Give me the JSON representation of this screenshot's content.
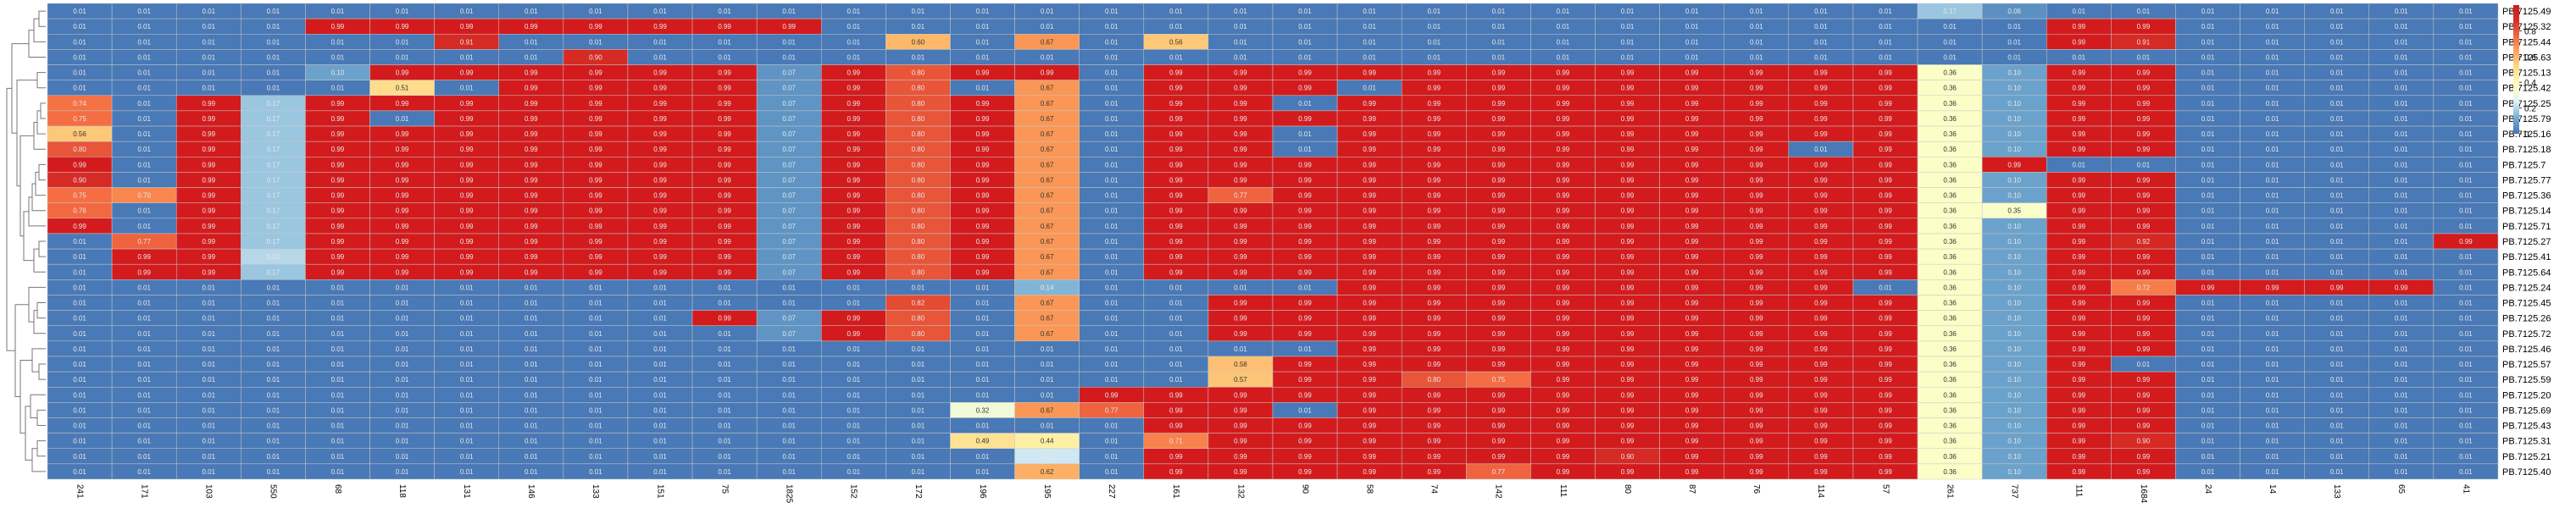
{
  "chart_data": {
    "type": "heatmap",
    "title": "",
    "xlabel": "",
    "ylabel": "",
    "columns": [
      "241",
      "171",
      "103",
      "550",
      "68",
      "118",
      "131",
      "146",
      "133",
      "151",
      "75",
      "1825",
      "152",
      "172",
      "196",
      "195",
      "227",
      "161",
      "132",
      "90",
      "58",
      "74",
      "142",
      "111",
      "80",
      "87",
      "76",
      "114",
      "57",
      "261",
      "737",
      "111",
      "1684",
      "24",
      "14",
      "133",
      "65",
      "41"
    ],
    "rows": [
      "PB.7125.49",
      "PB.7125.32",
      "PB.7125.44",
      "PB.7125.63",
      "PB.7125.13",
      "PB.7125.42",
      "PB.7125.25",
      "PB.7125.79",
      "PB.7125.16",
      "PB.7125.18",
      "PB.7125.7",
      "PB.7125.77",
      "PB.7125.36",
      "PB.7125.14",
      "PB.7125.71",
      "PB.7125.27",
      "PB.7125.41",
      "PB.7125.64",
      "PB.7125.24",
      "PB.7125.45",
      "PB.7125.26",
      "PB.7125.72",
      "PB.7125.46",
      "PB.7125.57",
      "PB.7125.59",
      "PB.7125.20",
      "PB.7125.69",
      "PB.7125.43",
      "PB.7125.31",
      "PB.7125.21",
      "PB.7125.40"
    ],
    "values": [
      [
        0.01,
        0.01,
        0.01,
        0.01,
        0.01,
        0.01,
        0.01,
        0.01,
        0.01,
        0.01,
        0.01,
        0.01,
        0.01,
        0.01,
        0.01,
        0.01,
        0.01,
        0.01,
        0.01,
        0.01,
        0.01,
        0.01,
        0.01,
        0.01,
        0.01,
        0.01,
        0.01,
        0.01,
        0.01,
        0.17,
        0.06,
        0.01,
        0.01,
        0.01,
        0.01,
        0.01,
        0.01,
        0.01
      ],
      [
        0.01,
        0.01,
        0.01,
        0.01,
        0.99,
        0.99,
        0.99,
        0.99,
        0.99,
        0.99,
        0.99,
        0.99,
        0.01,
        0.01,
        0.01,
        0.01,
        0.01,
        0.01,
        0.01,
        0.01,
        0.01,
        0.01,
        0.01,
        0.01,
        0.01,
        0.01,
        0.01,
        0.01,
        0.01,
        0.01,
        0.01,
        0.99,
        0.99,
        0.01,
        0.01,
        0.01,
        0.01,
        0.01
      ],
      [
        0.01,
        0.01,
        0.01,
        0.01,
        0.01,
        0.01,
        0.91,
        0.01,
        0.01,
        0.01,
        0.01,
        0.01,
        0.01,
        0.6,
        0.01,
        0.67,
        0.01,
        0.56,
        0.01,
        0.01,
        0.01,
        0.01,
        0.01,
        0.01,
        0.01,
        0.01,
        0.01,
        0.01,
        0.01,
        0.01,
        0.01,
        0.99,
        0.91,
        0.01,
        0.01,
        0.01,
        0.01,
        0.01
      ],
      [
        0.01,
        0.01,
        0.01,
        0.01,
        0.01,
        0.01,
        0.01,
        0.01,
        0.9,
        0.01,
        0.01,
        0.01,
        0.01,
        0.01,
        0.01,
        0.01,
        0.01,
        0.01,
        0.01,
        0.01,
        0.01,
        0.01,
        0.01,
        0.01,
        0.01,
        0.01,
        0.01,
        0.01,
        0.01,
        0.01,
        0.01,
        0.01,
        0.01,
        0.01,
        0.01,
        0.01,
        0.01,
        0.01
      ],
      [
        0.01,
        0.01,
        0.01,
        0.01,
        0.1,
        0.99,
        0.99,
        0.99,
        0.99,
        0.99,
        0.99,
        0.07,
        0.99,
        0.8,
        0.99,
        0.99,
        0.01,
        0.99,
        0.99,
        0.99,
        0.99,
        0.99,
        0.99,
        0.99,
        0.99,
        0.99,
        0.99,
        0.99,
        0.99,
        0.36,
        0.1,
        0.99,
        0.99,
        0.01,
        0.01,
        0.01,
        0.01,
        0.01
      ],
      [
        0.01,
        0.01,
        0.01,
        0.01,
        0.01,
        0.51,
        0.01,
        0.99,
        0.99,
        0.99,
        0.99,
        0.07,
        0.99,
        0.8,
        0.01,
        0.67,
        0.01,
        0.99,
        0.99,
        0.99,
        0.01,
        0.99,
        0.99,
        0.99,
        0.99,
        0.99,
        0.99,
        0.99,
        0.99,
        0.36,
        0.1,
        0.99,
        0.99,
        0.01,
        0.01,
        0.01,
        0.01,
        0.01
      ],
      [
        0.74,
        0.01,
        0.99,
        0.17,
        0.99,
        0.99,
        0.99,
        0.99,
        0.99,
        0.99,
        0.99,
        0.07,
        0.99,
        0.8,
        0.99,
        0.67,
        0.01,
        0.99,
        0.99,
        0.01,
        0.99,
        0.99,
        0.99,
        0.99,
        0.99,
        0.99,
        0.99,
        0.99,
        0.99,
        0.36,
        0.1,
        0.99,
        0.99,
        0.01,
        0.01,
        0.01,
        0.01,
        0.01
      ],
      [
        0.75,
        0.01,
        0.99,
        0.17,
        0.99,
        0.01,
        0.99,
        0.99,
        0.99,
        0.99,
        0.99,
        0.07,
        0.99,
        0.8,
        0.99,
        0.67,
        0.01,
        0.99,
        0.99,
        0.99,
        0.99,
        0.99,
        0.99,
        0.99,
        0.99,
        0.99,
        0.99,
        0.99,
        0.99,
        0.36,
        0.1,
        0.99,
        0.99,
        0.01,
        0.01,
        0.01,
        0.01,
        0.01
      ],
      [
        0.56,
        0.01,
        0.99,
        0.17,
        0.99,
        0.99,
        0.99,
        0.99,
        0.99,
        0.99,
        0.99,
        0.07,
        0.99,
        0.8,
        0.99,
        0.67,
        0.01,
        0.99,
        0.99,
        0.01,
        0.99,
        0.99,
        0.99,
        0.99,
        0.99,
        0.99,
        0.99,
        0.99,
        0.99,
        0.36,
        0.1,
        0.99,
        0.99,
        0.01,
        0.01,
        0.01,
        0.01,
        0.01
      ],
      [
        0.8,
        0.01,
        0.99,
        0.17,
        0.99,
        0.99,
        0.99,
        0.99,
        0.99,
        0.99,
        0.99,
        0.07,
        0.99,
        0.8,
        0.99,
        0.67,
        0.01,
        0.99,
        0.99,
        0.01,
        0.99,
        0.99,
        0.99,
        0.99,
        0.99,
        0.99,
        0.99,
        0.01,
        0.99,
        0.36,
        0.1,
        0.99,
        0.99,
        0.01,
        0.01,
        0.01,
        0.01,
        0.01
      ],
      [
        0.99,
        0.01,
        0.99,
        0.17,
        0.99,
        0.99,
        0.99,
        0.99,
        0.99,
        0.99,
        0.99,
        0.07,
        0.99,
        0.8,
        0.99,
        0.67,
        0.01,
        0.99,
        0.99,
        0.99,
        0.99,
        0.99,
        0.99,
        0.99,
        0.99,
        0.99,
        0.99,
        0.99,
        0.99,
        0.36,
        0.99,
        0.01,
        0.01,
        0.01,
        0.01,
        0.01,
        0.01,
        0.01
      ],
      [
        0.9,
        0.01,
        0.99,
        0.17,
        0.99,
        0.99,
        0.99,
        0.99,
        0.99,
        0.99,
        0.99,
        0.07,
        0.99,
        0.8,
        0.99,
        0.67,
        0.01,
        0.99,
        0.99,
        0.99,
        0.99,
        0.99,
        0.99,
        0.99,
        0.99,
        0.99,
        0.99,
        0.99,
        0.99,
        0.36,
        0.1,
        0.99,
        0.99,
        0.01,
        0.01,
        0.01,
        0.01,
        0.01
      ],
      [
        0.75,
        0.7,
        0.99,
        0.17,
        0.99,
        0.99,
        0.99,
        0.99,
        0.99,
        0.99,
        0.99,
        0.07,
        0.99,
        0.8,
        0.99,
        0.67,
        0.01,
        0.99,
        0.77,
        0.99,
        0.99,
        0.99,
        0.99,
        0.99,
        0.99,
        0.99,
        0.99,
        0.99,
        0.99,
        0.36,
        0.1,
        0.99,
        0.99,
        0.01,
        0.01,
        0.01,
        0.01,
        0.01
      ],
      [
        0.76,
        0.01,
        0.99,
        0.17,
        0.99,
        0.99,
        0.99,
        0.99,
        0.99,
        0.99,
        0.99,
        0.07,
        0.99,
        0.8,
        0.99,
        0.67,
        0.01,
        0.99,
        0.99,
        0.99,
        0.99,
        0.99,
        0.99,
        0.99,
        0.99,
        0.99,
        0.99,
        0.99,
        0.99,
        0.36,
        0.35,
        0.99,
        0.99,
        0.01,
        0.01,
        0.01,
        0.01,
        0.01
      ],
      [
        0.99,
        0.01,
        0.99,
        0.17,
        0.99,
        0.99,
        0.99,
        0.99,
        0.99,
        0.99,
        0.99,
        0.07,
        0.99,
        0.8,
        0.99,
        0.67,
        0.01,
        0.99,
        0.99,
        0.99,
        0.99,
        0.99,
        0.99,
        0.99,
        0.99,
        0.99,
        0.99,
        0.99,
        0.99,
        0.36,
        0.1,
        0.99,
        0.99,
        0.01,
        0.01,
        0.01,
        0.01,
        0.01
      ],
      [
        0.01,
        0.77,
        0.99,
        0.17,
        0.99,
        0.99,
        0.99,
        0.99,
        0.99,
        0.99,
        0.99,
        0.07,
        0.99,
        0.8,
        0.99,
        0.67,
        0.01,
        0.99,
        0.99,
        0.99,
        0.99,
        0.99,
        0.99,
        0.99,
        0.99,
        0.99,
        0.99,
        0.99,
        0.99,
        0.36,
        0.1,
        0.99,
        0.92,
        0.01,
        0.01,
        0.01,
        0.01,
        0.99
      ],
      [
        0.01,
        0.99,
        0.99,
        0.2,
        0.99,
        0.99,
        0.99,
        0.99,
        0.99,
        0.99,
        0.99,
        0.07,
        0.99,
        0.8,
        0.99,
        0.67,
        0.01,
        0.99,
        0.99,
        0.99,
        0.99,
        0.99,
        0.99,
        0.99,
        0.99,
        0.99,
        0.99,
        0.99,
        0.99,
        0.36,
        0.1,
        0.99,
        0.99,
        0.01,
        0.01,
        0.01,
        0.01,
        0.01
      ],
      [
        0.01,
        0.99,
        0.99,
        0.17,
        0.99,
        0.99,
        0.99,
        0.99,
        0.99,
        0.99,
        0.99,
        0.07,
        0.99,
        0.8,
        0.99,
        0.67,
        0.01,
        0.99,
        0.99,
        0.99,
        0.99,
        0.99,
        0.99,
        0.99,
        0.99,
        0.99,
        0.99,
        0.99,
        0.99,
        0.36,
        0.1,
        0.99,
        0.99,
        0.01,
        0.01,
        0.01,
        0.01,
        0.01
      ],
      [
        0.01,
        0.01,
        0.01,
        0.01,
        0.01,
        0.01,
        0.01,
        0.01,
        0.01,
        0.01,
        0.01,
        0.01,
        0.01,
        0.01,
        0.01,
        0.14,
        0.01,
        0.01,
        0.01,
        0.01,
        0.99,
        0.99,
        0.99,
        0.99,
        0.99,
        0.99,
        0.99,
        0.99,
        0.01,
        0.36,
        0.1,
        0.99,
        0.72,
        0.99,
        0.99,
        0.99,
        0.99,
        0.01
      ],
      [
        0.01,
        0.01,
        0.01,
        0.01,
        0.01,
        0.01,
        0.01,
        0.01,
        0.01,
        0.01,
        0.01,
        0.01,
        0.01,
        0.82,
        0.01,
        0.67,
        0.01,
        0.01,
        0.99,
        0.99,
        0.99,
        0.99,
        0.99,
        0.99,
        0.99,
        0.99,
        0.99,
        0.99,
        0.99,
        0.36,
        0.1,
        0.99,
        0.99,
        0.01,
        0.01,
        0.01,
        0.01,
        0.01
      ],
      [
        0.01,
        0.01,
        0.01,
        0.01,
        0.01,
        0.01,
        0.01,
        0.01,
        0.01,
        0.01,
        0.99,
        0.07,
        0.99,
        0.8,
        0.01,
        0.67,
        0.01,
        0.01,
        0.99,
        0.99,
        0.99,
        0.99,
        0.99,
        0.99,
        0.99,
        0.99,
        0.99,
        0.99,
        0.99,
        0.36,
        0.1,
        0.99,
        0.99,
        0.01,
        0.01,
        0.01,
        0.01,
        0.01
      ],
      [
        0.01,
        0.01,
        0.01,
        0.01,
        0.01,
        0.01,
        0.01,
        0.01,
        0.01,
        0.01,
        0.01,
        0.07,
        0.99,
        0.8,
        0.01,
        0.67,
        0.01,
        0.01,
        0.99,
        0.99,
        0.99,
        0.99,
        0.99,
        0.99,
        0.99,
        0.99,
        0.99,
        0.99,
        0.99,
        0.36,
        0.1,
        0.99,
        0.99,
        0.01,
        0.01,
        0.01,
        0.01,
        0.01
      ],
      [
        0.01,
        0.01,
        0.01,
        0.01,
        0.01,
        0.01,
        0.01,
        0.01,
        0.01,
        0.01,
        0.01,
        0.01,
        0.01,
        0.01,
        0.01,
        0.01,
        0.01,
        0.01,
        0.01,
        0.01,
        0.99,
        0.99,
        0.99,
        0.99,
        0.99,
        0.99,
        0.99,
        0.99,
        0.99,
        0.36,
        0.1,
        0.99,
        0.99,
        0.01,
        0.01,
        0.01,
        0.01,
        0.01
      ],
      [
        0.01,
        0.01,
        0.01,
        0.01,
        0.01,
        0.01,
        0.01,
        0.01,
        0.01,
        0.01,
        0.01,
        0.01,
        0.01,
        0.01,
        0.01,
        0.01,
        0.01,
        0.01,
        0.58,
        0.99,
        0.99,
        0.99,
        0.99,
        0.99,
        0.99,
        0.99,
        0.99,
        0.99,
        0.99,
        0.36,
        0.1,
        0.99,
        0.01,
        0.01,
        0.01,
        0.01,
        0.01,
        0.01
      ],
      [
        0.01,
        0.01,
        0.01,
        0.01,
        0.01,
        0.01,
        0.01,
        0.01,
        0.01,
        0.01,
        0.01,
        0.01,
        0.01,
        0.01,
        0.01,
        0.01,
        0.01,
        0.01,
        0.57,
        0.99,
        0.99,
        0.8,
        0.75,
        0.99,
        0.99,
        0.99,
        0.99,
        0.99,
        0.99,
        0.36,
        0.1,
        0.99,
        0.99,
        0.01,
        0.01,
        0.01,
        0.01,
        0.01
      ],
      [
        0.01,
        0.01,
        0.01,
        0.01,
        0.01,
        0.01,
        0.01,
        0.01,
        0.01,
        0.01,
        0.01,
        0.01,
        0.01,
        0.01,
        0.01,
        0.01,
        0.99,
        0.99,
        0.99,
        0.99,
        0.99,
        0.99,
        0.99,
        0.99,
        0.99,
        0.99,
        0.99,
        0.99,
        0.99,
        0.36,
        0.1,
        0.99,
        0.99,
        0.01,
        0.01,
        0.01,
        0.01,
        0.01
      ],
      [
        0.01,
        0.01,
        0.01,
        0.01,
        0.01,
        0.01,
        0.01,
        0.01,
        0.01,
        0.01,
        0.01,
        0.01,
        0.01,
        0.01,
        0.32,
        0.67,
        0.77,
        0.99,
        0.99,
        0.01,
        0.99,
        0.99,
        0.99,
        0.99,
        0.99,
        0.99,
        0.99,
        0.99,
        0.99,
        0.36,
        0.1,
        0.99,
        0.99,
        0.01,
        0.01,
        0.01,
        0.01,
        0.01
      ],
      [
        0.01,
        0.01,
        0.01,
        0.01,
        0.01,
        0.01,
        0.01,
        0.01,
        0.01,
        0.01,
        0.01,
        0.01,
        0.01,
        0.01,
        0.01,
        0.01,
        0.01,
        0.99,
        0.99,
        0.99,
        0.99,
        0.99,
        0.99,
        0.99,
        0.99,
        0.99,
        0.99,
        0.99,
        0.99,
        0.36,
        0.1,
        0.99,
        0.99,
        0.01,
        0.01,
        0.01,
        0.01,
        0.01
      ],
      [
        0.01,
        0.01,
        0.01,
        0.01,
        0.01,
        0.01,
        0.01,
        0.01,
        0.01,
        0.01,
        0.01,
        0.01,
        0.01,
        0.01,
        0.49,
        0.44,
        0.01,
        0.71,
        0.99,
        0.99,
        0.99,
        0.99,
        0.99,
        0.99,
        0.99,
        0.99,
        0.99,
        0.99,
        0.99,
        0.36,
        0.1,
        0.99,
        0.9,
        0.01,
        0.01,
        0.01,
        0.01,
        0.01
      ],
      [
        0.01,
        0.01,
        0.01,
        0.01,
        0.01,
        0.01,
        0.01,
        0.01,
        0.01,
        0.01,
        0.01,
        0.01,
        0.01,
        0.01,
        0.01,
        0.23,
        0.01,
        0.99,
        0.99,
        0.99,
        0.99,
        0.99,
        0.99,
        0.99,
        0.9,
        0.99,
        0.99,
        0.99,
        0.99,
        0.36,
        0.1,
        0.99,
        0.99,
        0.01,
        0.01,
        0.01,
        0.01,
        0.01
      ],
      [
        0.01,
        0.01,
        0.01,
        0.01,
        0.01,
        0.01,
        0.01,
        0.01,
        0.01,
        0.01,
        0.01,
        0.01,
        0.01,
        0.01,
        0.01,
        0.62,
        0.01,
        0.99,
        0.99,
        0.99,
        0.99,
        0.99,
        0.77,
        0.99,
        0.99,
        0.99,
        0.99,
        0.99,
        0.99,
        0.36,
        0.1,
        0.99,
        0.99,
        0.01,
        0.01,
        0.01,
        0.01,
        0.01
      ]
    ],
    "colorbar": {
      "ticks": [
        "0",
        "0.2",
        "0.4",
        "0.6",
        "0.8"
      ],
      "range": [
        0,
        1
      ],
      "placement": "top-right"
    },
    "colormap": [
      "#4575b4",
      "#74add1",
      "#e0f3f8",
      "#ffffbf",
      "#fee090",
      "#fdae61",
      "#f46d43",
      "#d73027",
      "#d3191c"
    ],
    "dendrogram": "left",
    "grid": true,
    "legend": "colorbar top-right"
  }
}
